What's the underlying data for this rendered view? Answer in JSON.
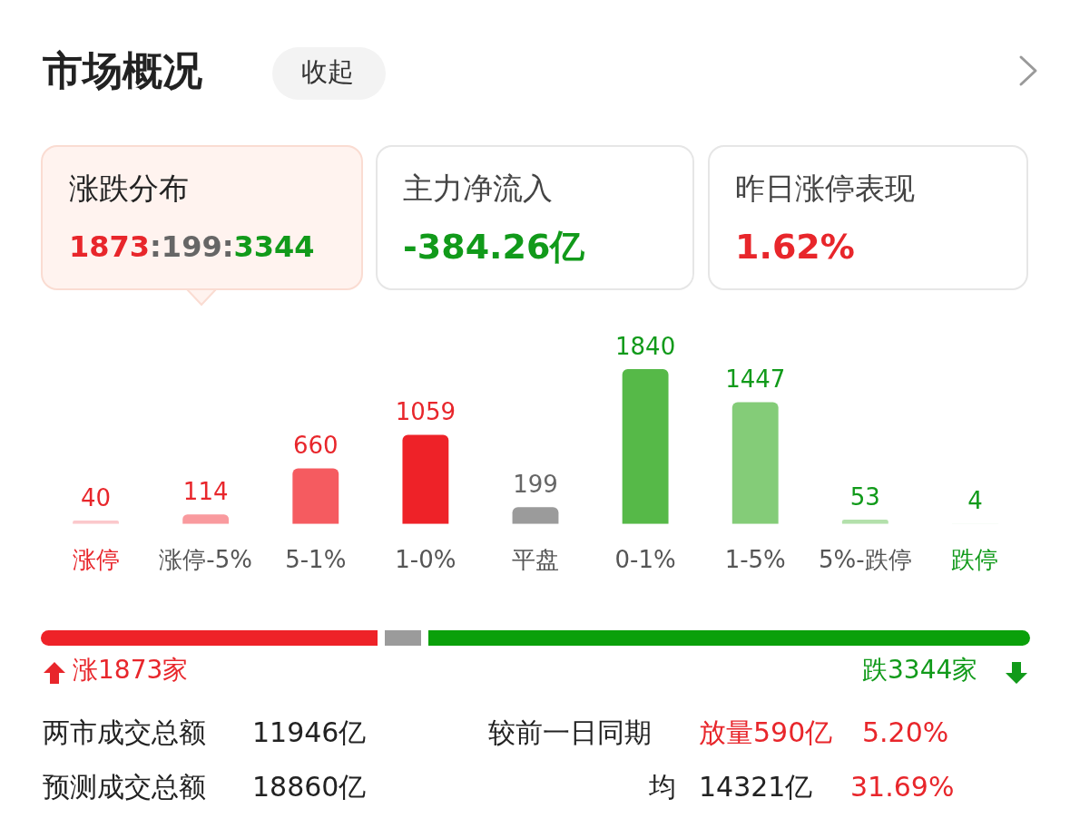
{
  "chart_data": {
    "type": "bar",
    "title": "市场概况",
    "categories": [
      "涨停",
      "涨停-5%",
      "5-1%",
      "1-0%",
      "平盘",
      "0-1%",
      "1-5%",
      "5%-跌停",
      "跌停"
    ],
    "values": [
      40,
      114,
      660,
      1059,
      199,
      1840,
      1447,
      53,
      4
    ],
    "colors": [
      "#fbc8cb",
      "#f99a9e",
      "#f55b60",
      "#ee2228",
      "#9b9b9b",
      "#56b948",
      "#84cc78",
      "#b3e0ab",
      "#d6efd2"
    ],
    "data_labels": true,
    "annotations": [
      "收起",
      "涨跌分布",
      "1873",
      ":",
      "199",
      ":",
      "3344",
      "主力净流入",
      "-384.26亿",
      "昨日涨停表现",
      "1.62%",
      "涨1873家",
      "跌3344家",
      "两市成交总额",
      "11946亿",
      "较前一日同期",
      "放量590亿",
      "5.20%",
      "预测成交总额",
      "18860亿",
      "均",
      "14321亿",
      "31.69%"
    ]
  }
}
